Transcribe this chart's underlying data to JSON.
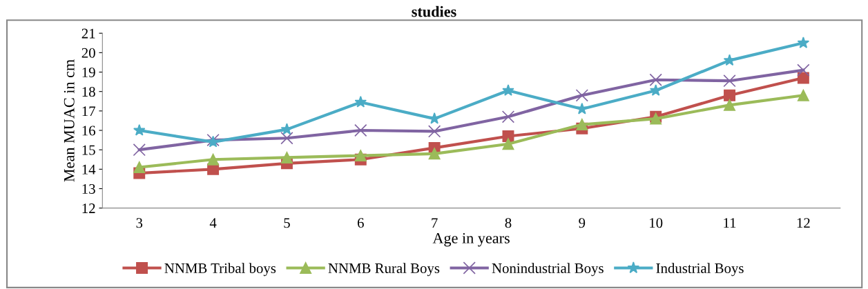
{
  "chart_data": {
    "type": "line",
    "title": "studies",
    "xlabel": "Age in years",
    "ylabel": "Mean MUAC in cm",
    "categories": [
      "3",
      "4",
      "5",
      "6",
      "7",
      "8",
      "9",
      "10",
      "11",
      "12"
    ],
    "series": [
      {
        "name": "NNMB Tribal boys",
        "color": "#c0504d",
        "marker": "square",
        "values": [
          13.8,
          14.0,
          14.3,
          14.5,
          15.1,
          15.7,
          16.1,
          16.7,
          17.8,
          18.7
        ]
      },
      {
        "name": "NNMB Rural Boys",
        "color": "#9bbb59",
        "marker": "triangle",
        "values": [
          14.1,
          14.5,
          14.6,
          14.7,
          14.8,
          15.3,
          16.3,
          16.6,
          17.3,
          17.8
        ]
      },
      {
        "name": "Nonindustrial Boys",
        "color": "#8064a2",
        "marker": "cross",
        "values": [
          15.0,
          15.5,
          15.6,
          16.0,
          15.95,
          16.7,
          17.8,
          18.6,
          18.55,
          19.1
        ]
      },
      {
        "name": "Industrial Boys",
        "color": "#4bacc6",
        "marker": "star",
        "values": [
          16.0,
          15.4,
          16.05,
          17.45,
          16.6,
          18.05,
          17.1,
          18.05,
          19.6,
          20.5
        ]
      }
    ],
    "ylim": [
      12,
      21
    ],
    "yticks": [
      12,
      13,
      14,
      15,
      16,
      17,
      18,
      19,
      20,
      21
    ],
    "grid": false,
    "legend": "bottom",
    "line_style": "solid"
  }
}
